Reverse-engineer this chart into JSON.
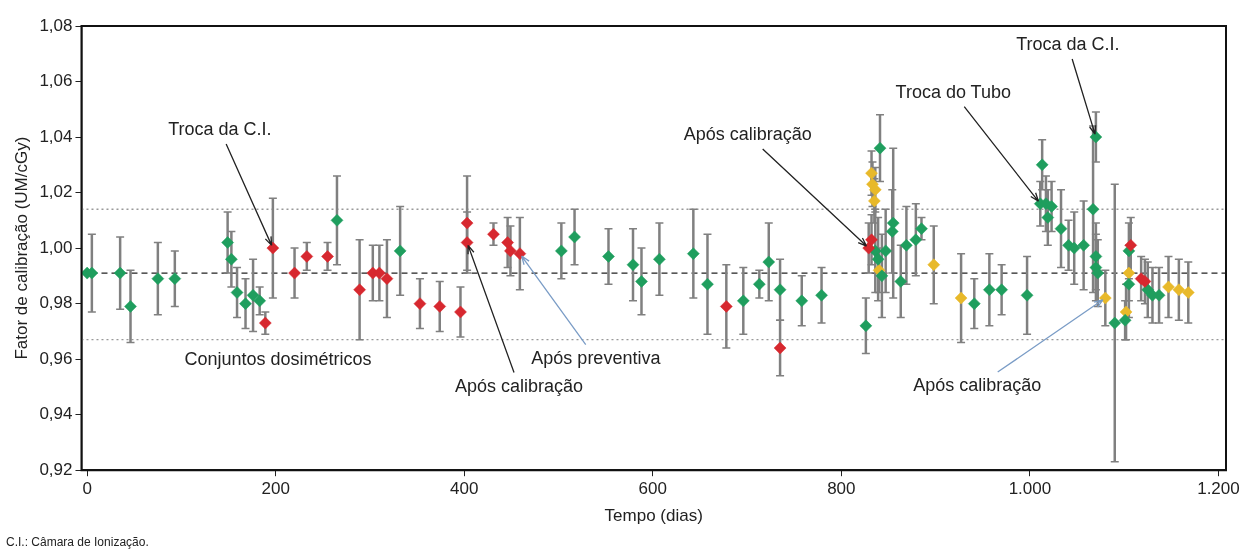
{
  "chart_data": {
    "type": "scatter",
    "xlabel": "Tempo (dias)",
    "ylabel": "Fator de calibração (UM/cGy)",
    "xlim": [
      -6,
      1208
    ],
    "ylim": [
      0.92,
      1.08
    ],
    "xticks": [
      0,
      200,
      400,
      600,
      800,
      {
        "value": 1000,
        "label": "1.000"
      },
      {
        "value": 1200,
        "label": "1.200"
      }
    ],
    "yticks": [
      {
        "value": 0.92,
        "label": "0,92"
      },
      {
        "value": 0.94,
        "label": "0,94"
      },
      {
        "value": 0.96,
        "label": "0,96"
      },
      {
        "value": 0.98,
        "label": "0,98"
      },
      {
        "value": 1.0,
        "label": "1,00"
      },
      {
        "value": 1.02,
        "label": "1,02"
      },
      {
        "value": 1.04,
        "label": "1,04"
      },
      {
        "value": 1.06,
        "label": "1,06"
      },
      {
        "value": 1.08,
        "label": "1,08"
      }
    ],
    "grid": false,
    "legend": false,
    "marker": "diamond",
    "ref_lines": [
      {
        "axis": "y",
        "value": 1.014,
        "color": "#999999",
        "line_style": "dotted"
      },
      {
        "axis": "y",
        "value": 0.991,
        "color": "#222222",
        "line_style": "dashed"
      },
      {
        "axis": "y",
        "value": 0.967,
        "color": "#999999",
        "line_style": "dotted"
      }
    ],
    "series": [
      {
        "color": "#d7282f",
        "x": [
          189,
          197,
          220,
          233,
          255,
          289,
          303,
          310,
          318,
          353,
          374,
          396,
          403,
          403,
          431,
          446,
          449,
          459,
          678,
          735,
          829,
          832,
          1107,
          1118,
          1122
        ],
        "values": [
          0.973,
          1.0,
          0.991,
          0.997,
          0.997,
          0.985,
          0.991,
          0.991,
          0.989,
          0.98,
          0.979,
          0.977,
          1.009,
          1.002,
          1.005,
          1.002,
          0.999,
          0.998,
          0.979,
          0.964,
          1.0,
          1.003,
          1.001,
          0.989,
          0.988
        ],
        "errors": [
          0.004,
          0.018,
          0.009,
          0.005,
          0.005,
          0.018,
          0.01,
          0.01,
          0.014,
          0.009,
          0.009,
          0.009,
          0.017,
          0.011,
          0.004,
          0.009,
          0.009,
          0.013,
          0.015,
          0.01,
          0.009,
          0.009,
          0.01,
          0.008,
          0.008
        ]
      },
      {
        "color": "#1f9e5e",
        "x": [
          0,
          5,
          35,
          46,
          75,
          93,
          149,
          153,
          159,
          168,
          176,
          183,
          265,
          332,
          503,
          517,
          553,
          579,
          588,
          607,
          643,
          658,
          696,
          713,
          723,
          735,
          758,
          779,
          826,
          836,
          839,
          841,
          843,
          847,
          854,
          855,
          863,
          869,
          879,
          885,
          941,
          957,
          970,
          997,
          1011,
          1013,
          1017,
          1019,
          1023,
          1033,
          1041,
          1047,
          1057,
          1067,
          1070,
          1070,
          1070,
          1072,
          1090,
          1101,
          1105,
          1105,
          1125,
          1130,
          1137
        ],
        "values": [
          0.991,
          0.991,
          0.991,
          0.979,
          0.989,
          0.989,
          1.002,
          0.996,
          0.984,
          0.98,
          0.983,
          0.981,
          1.01,
          0.999,
          0.999,
          1.004,
          0.997,
          0.994,
          0.988,
          0.996,
          0.998,
          0.987,
          0.981,
          0.987,
          0.995,
          0.985,
          0.981,
          0.983,
          0.972,
          0.999,
          0.996,
          1.036,
          0.99,
          0.999,
          1.006,
          1.009,
          0.988,
          1.001,
          1.003,
          1.007,
          0.98,
          0.985,
          0.985,
          0.983,
          1.016,
          1.03,
          1.016,
          1.011,
          1.015,
          1.007,
          1.001,
          1.0,
          1.001,
          1.014,
          1.04,
          0.997,
          0.993,
          0.991,
          0.973,
          0.974,
          0.987,
          0.999,
          0.985,
          0.983,
          0.983
        ],
        "errors": [
          null,
          0.014,
          0.013,
          0.013,
          0.013,
          0.01,
          0.011,
          0.01,
          0.009,
          0.009,
          0.013,
          0.005,
          0.016,
          0.016,
          0.01,
          0.01,
          0.01,
          0.013,
          0.012,
          0.013,
          0.016,
          0.018,
          0.012,
          0.005,
          0.014,
          0.011,
          0.009,
          0.01,
          0.01,
          0.015,
          0.015,
          0.012,
          0.015,
          0.015,
          0.015,
          0.027,
          0.013,
          0.014,
          0.013,
          0.004,
          0.009,
          0.013,
          0.009,
          0.014,
          0.008,
          0.009,
          0.01,
          0.01,
          0.009,
          0.014,
          0.009,
          0.013,
          0.016,
          0.03,
          0.009,
          0.012,
          0.012,
          0.012,
          0.05,
          0.007,
          0.012,
          0.01,
          0.01,
          0.01,
          0.01
        ]
      },
      {
        "color": "#e8b92a",
        "x": [
          832,
          833,
          835,
          836,
          840,
          898,
          927,
          1080,
          1102,
          1105,
          1147,
          1158,
          1168
        ],
        "values": [
          1.027,
          1.023,
          1.017,
          1.021,
          0.992,
          0.994,
          0.982,
          0.982,
          0.977,
          0.991,
          0.986,
          0.985,
          0.984
        ],
        "errors": [
          0.008,
          0.008,
          0.008,
          0.008,
          0.008,
          0.014,
          0.016,
          0.01,
          0.01,
          0.01,
          0.011,
          0.011,
          0.011
        ]
      }
    ],
    "annotations": [
      {
        "text": "Troca da C.I.",
        "x": 197,
        "y": 1.0
      },
      {
        "text": "Após calibração",
        "x": 403,
        "y": 1.002
      },
      {
        "text": "Após preventiva",
        "x": 459,
        "y": 0.998
      },
      {
        "text": "Após calibração",
        "x": 829,
        "y": 1.0
      },
      {
        "text": "Troca do Tubo",
        "x": 1011,
        "y": 1.016
      },
      {
        "text": "Troca da C.I.",
        "x": 1070,
        "y": 1.04
      },
      {
        "text": "Após calibração",
        "x": 1080,
        "y": 0.982
      },
      "Conjuntos dosimétricos",
      "C.I.: Câmara de Ionização."
    ]
  }
}
